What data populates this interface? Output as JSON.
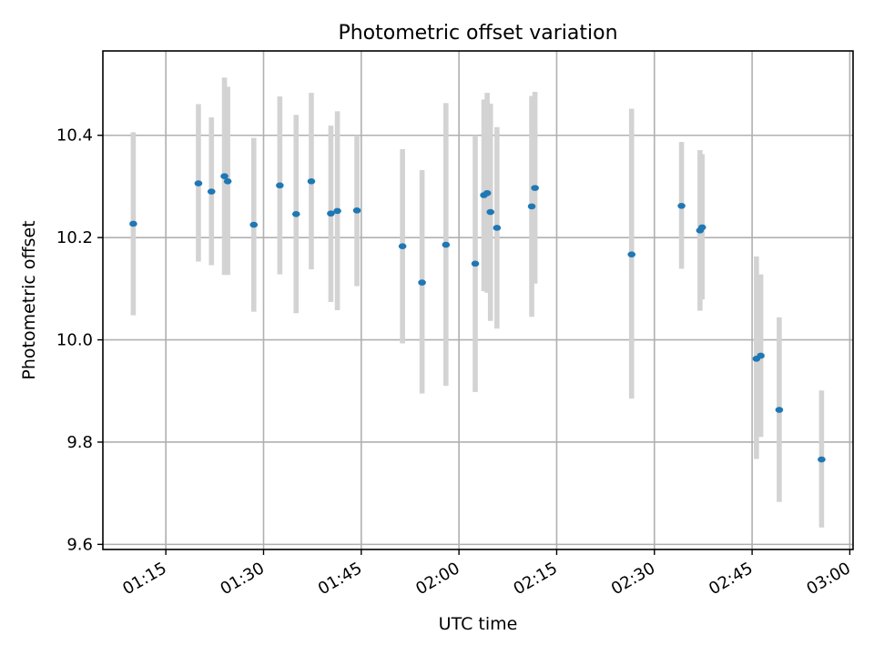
{
  "chart_data": {
    "type": "scatter",
    "title": "Photometric offset variation",
    "xlabel": "UTC time",
    "ylabel": "Photometric offset",
    "x_ticks": [
      "01:15",
      "01:30",
      "01:45",
      "02:00",
      "02:15",
      "02:30",
      "02:45",
      "03:00"
    ],
    "y_ticks": [
      "9.6",
      "9.8",
      "10.0",
      "10.2",
      "10.4"
    ],
    "xlim": [
      "01:05:20",
      "03:00:30"
    ],
    "ylim": [
      9.59,
      10.565
    ],
    "grid": true,
    "colors": {
      "point": "#1f77b4",
      "errorbar": "#d3d3d3",
      "grid": "#b0b0b0"
    },
    "points": [
      {
        "x": "01:10:00",
        "y": 10.227,
        "ylow": 10.048,
        "yhigh": 10.406
      },
      {
        "x": "01:20:00",
        "y": 10.306,
        "ylow": 10.153,
        "yhigh": 10.461
      },
      {
        "x": "01:22:00",
        "y": 10.29,
        "ylow": 10.146,
        "yhigh": 10.435
      },
      {
        "x": "01:24:00",
        "y": 10.32,
        "ylow": 10.127,
        "yhigh": 10.513
      },
      {
        "x": "01:24:30",
        "y": 10.31,
        "ylow": 10.127,
        "yhigh": 10.495
      },
      {
        "x": "01:28:30",
        "y": 10.225,
        "ylow": 10.055,
        "yhigh": 10.395
      },
      {
        "x": "01:32:30",
        "y": 10.302,
        "ylow": 10.128,
        "yhigh": 10.476
      },
      {
        "x": "01:35:00",
        "y": 10.246,
        "ylow": 10.052,
        "yhigh": 10.44
      },
      {
        "x": "01:37:20",
        "y": 10.31,
        "ylow": 10.138,
        "yhigh": 10.483
      },
      {
        "x": "01:40:20",
        "y": 10.247,
        "ylow": 10.074,
        "yhigh": 10.419
      },
      {
        "x": "01:41:20",
        "y": 10.252,
        "ylow": 10.058,
        "yhigh": 10.447
      },
      {
        "x": "01:44:20",
        "y": 10.253,
        "ylow": 10.105,
        "yhigh": 10.4
      },
      {
        "x": "01:51:20",
        "y": 10.183,
        "ylow": 9.993,
        "yhigh": 10.373
      },
      {
        "x": "01:54:20",
        "y": 10.112,
        "ylow": 9.895,
        "yhigh": 10.332
      },
      {
        "x": "01:58:00",
        "y": 10.186,
        "ylow": 9.91,
        "yhigh": 10.463
      },
      {
        "x": "02:02:30",
        "y": 10.149,
        "ylow": 9.898,
        "yhigh": 10.4
      },
      {
        "x": "02:03:50",
        "y": 10.283,
        "ylow": 10.095,
        "yhigh": 10.47
      },
      {
        "x": "02:04:20",
        "y": 10.287,
        "ylow": 10.092,
        "yhigh": 10.483
      },
      {
        "x": "02:04:50",
        "y": 10.25,
        "ylow": 10.037,
        "yhigh": 10.462
      },
      {
        "x": "02:05:50",
        "y": 10.219,
        "ylow": 10.022,
        "yhigh": 10.416
      },
      {
        "x": "02:11:10",
        "y": 10.261,
        "ylow": 10.045,
        "yhigh": 10.477
      },
      {
        "x": "02:11:40",
        "y": 10.297,
        "ylow": 10.11,
        "yhigh": 10.485
      },
      {
        "x": "02:26:30",
        "y": 10.167,
        "ylow": 9.885,
        "yhigh": 10.452
      },
      {
        "x": "02:34:10",
        "y": 10.262,
        "ylow": 10.139,
        "yhigh": 10.387
      },
      {
        "x": "02:37:00",
        "y": 10.214,
        "ylow": 10.057,
        "yhigh": 10.371
      },
      {
        "x": "02:37:20",
        "y": 10.22,
        "ylow": 10.079,
        "yhigh": 10.363
      },
      {
        "x": "02:45:40",
        "y": 9.963,
        "ylow": 9.767,
        "yhigh": 10.163
      },
      {
        "x": "02:46:20",
        "y": 9.969,
        "ylow": 9.81,
        "yhigh": 10.128
      },
      {
        "x": "02:49:10",
        "y": 9.863,
        "ylow": 9.683,
        "yhigh": 10.044
      },
      {
        "x": "02:55:40",
        "y": 9.766,
        "ylow": 9.633,
        "yhigh": 9.901
      }
    ]
  }
}
